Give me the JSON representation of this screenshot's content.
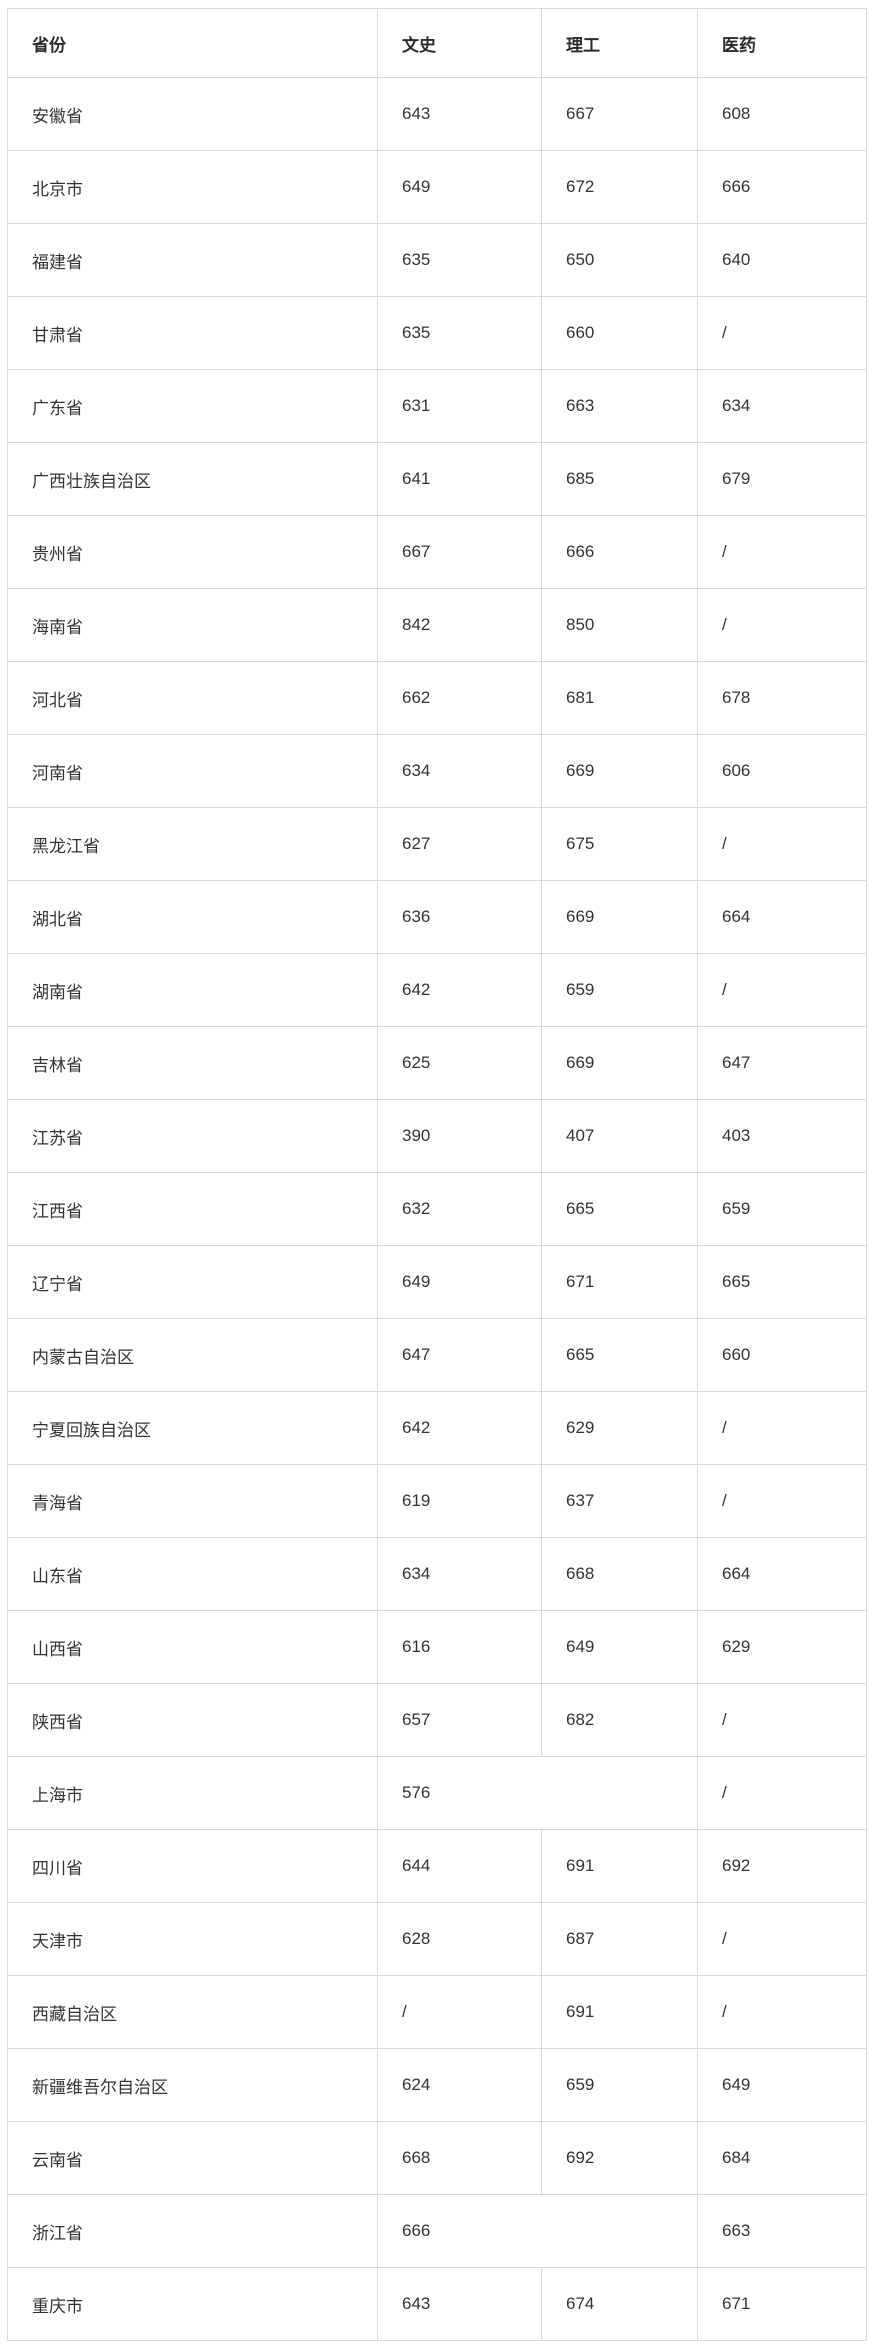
{
  "colors": {
    "background": "#ffffff",
    "border": "#d9d9d9",
    "header_text": "#2b2b2b",
    "cell_text": "#333333"
  },
  "chart_data": {
    "type": "table",
    "columns": [
      "省份",
      "文史",
      "理工",
      "医药"
    ],
    "no_data_symbol": "/",
    "rows": [
      {
        "province": "安徽省",
        "scores": [
          "643",
          "667",
          "608"
        ]
      },
      {
        "province": "北京市",
        "scores": [
          "649",
          "672",
          "666"
        ]
      },
      {
        "province": "福建省",
        "scores": [
          "635",
          "650",
          "640"
        ]
      },
      {
        "province": "甘肃省",
        "scores": [
          "635",
          "660",
          "/"
        ]
      },
      {
        "province": "广东省",
        "scores": [
          "631",
          "663",
          "634"
        ]
      },
      {
        "province": "广西壮族自治区",
        "scores": [
          "641",
          "685",
          "679"
        ]
      },
      {
        "province": "贵州省",
        "scores": [
          "667",
          "666",
          "/"
        ]
      },
      {
        "province": "海南省",
        "scores": [
          "842",
          "850",
          "/"
        ]
      },
      {
        "province": "河北省",
        "scores": [
          "662",
          "681",
          "678"
        ]
      },
      {
        "province": "河南省",
        "scores": [
          "634",
          "669",
          "606"
        ]
      },
      {
        "province": "黑龙江省",
        "scores": [
          "627",
          "675",
          "/"
        ]
      },
      {
        "province": "湖北省",
        "scores": [
          "636",
          "669",
          "664"
        ]
      },
      {
        "province": "湖南省",
        "scores": [
          "642",
          "659",
          "/"
        ]
      },
      {
        "province": "吉林省",
        "scores": [
          "625",
          "669",
          "647"
        ]
      },
      {
        "province": "江苏省",
        "scores": [
          "390",
          "407",
          "403"
        ]
      },
      {
        "province": "江西省",
        "scores": [
          "632",
          "665",
          "659"
        ]
      },
      {
        "province": "辽宁省",
        "scores": [
          "649",
          "671",
          "665"
        ]
      },
      {
        "province": "内蒙古自治区",
        "scores": [
          "647",
          "665",
          "660"
        ]
      },
      {
        "province": "宁夏回族自治区",
        "scores": [
          "642",
          "629",
          "/"
        ]
      },
      {
        "province": "青海省",
        "scores": [
          "619",
          "637",
          "/"
        ]
      },
      {
        "province": "山东省",
        "scores": [
          "634",
          "668",
          "664"
        ]
      },
      {
        "province": "山西省",
        "scores": [
          "616",
          "649",
          "629"
        ]
      },
      {
        "province": "陕西省",
        "scores": [
          "657",
          "682",
          "/"
        ]
      },
      {
        "province": "上海市",
        "scores": [
          "576",
          "/"
        ],
        "merged": true
      },
      {
        "province": "四川省",
        "scores": [
          "644",
          "691",
          "692"
        ]
      },
      {
        "province": "天津市",
        "scores": [
          "628",
          "687",
          "/"
        ]
      },
      {
        "province": "西藏自治区",
        "scores": [
          "/",
          "691",
          "/"
        ]
      },
      {
        "province": "新疆维吾尔自治区",
        "scores": [
          "624",
          "659",
          "649"
        ]
      },
      {
        "province": "云南省",
        "scores": [
          "668",
          "692",
          "684"
        ]
      },
      {
        "province": "浙江省",
        "scores": [
          "666",
          "663"
        ],
        "merged": true
      },
      {
        "province": "重庆市",
        "scores": [
          "643",
          "674",
          "671"
        ]
      }
    ]
  }
}
